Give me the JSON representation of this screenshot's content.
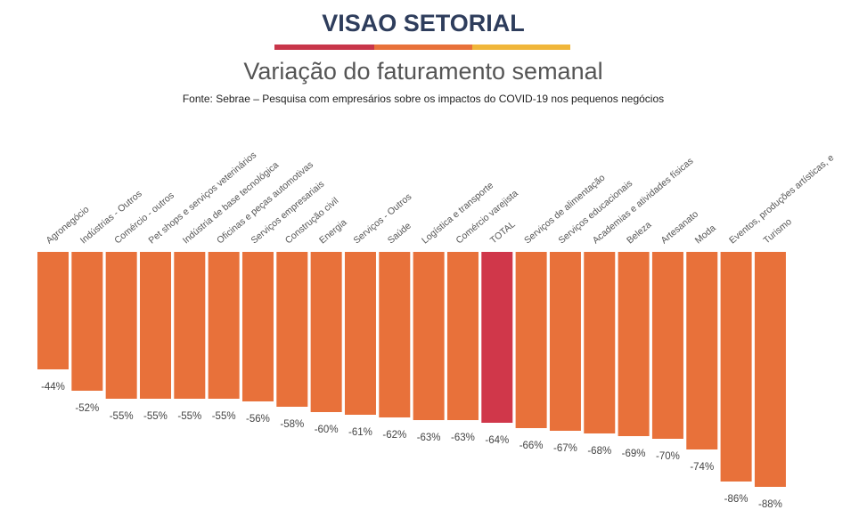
{
  "header": "VISAO SETORIAL",
  "chart_data": {
    "type": "bar",
    "title": "Variação do faturamento semanal",
    "subtitle": "Fonte: Sebrae – Pesquisa com empresários sobre os impactos do COVID-19 nos pequenos negócios",
    "categories": [
      "Agronegócio",
      "Indústrias - Outros",
      "Comércio - outros",
      "Pet shops e serviços veterinários",
      "Indústria de base tecnológica",
      "Oficinas e peças automotivas",
      "Serviços empresariais",
      "Construção civil",
      "Energia",
      "Serviços - Outros",
      "Saúde",
      "Logística e transporte",
      "Comércio varejista",
      "TOTAL",
      "Serviços de alimentação",
      "Serviços educacionais",
      "Academias e atividades físicas",
      "Beleza",
      "Artesanato",
      "Moda",
      "Eventos, produções artísticas, e",
      "Turismo"
    ],
    "values": [
      -44,
      -52,
      -55,
      -55,
      -55,
      -55,
      -56,
      -58,
      -60,
      -61,
      -62,
      -63,
      -63,
      -64,
      -66,
      -67,
      -68,
      -69,
      -70,
      -74,
      -86,
      -88
    ],
    "value_labels": [
      "-44%",
      "-52%",
      "-55%",
      "-55%",
      "-55%",
      "-55%",
      "-56%",
      "-58%",
      "-60%",
      "-61%",
      "-62%",
      "-63%",
      "-63%",
      "-64%",
      "-66%",
      "-67%",
      "-68%",
      "-69%",
      "-70%",
      "-74%",
      "-86%",
      "-88%"
    ],
    "colors": [
      "#e8713a",
      "#e8713a",
      "#e8713a",
      "#e8713a",
      "#e8713a",
      "#e8713a",
      "#e8713a",
      "#e8713a",
      "#e8713a",
      "#e8713a",
      "#e8713a",
      "#e8713a",
      "#e8713a",
      "#d0374a",
      "#e8713a",
      "#e8713a",
      "#e8713a",
      "#e8713a",
      "#e8713a",
      "#e8713a",
      "#e8713a",
      "#e8713a"
    ]
  }
}
